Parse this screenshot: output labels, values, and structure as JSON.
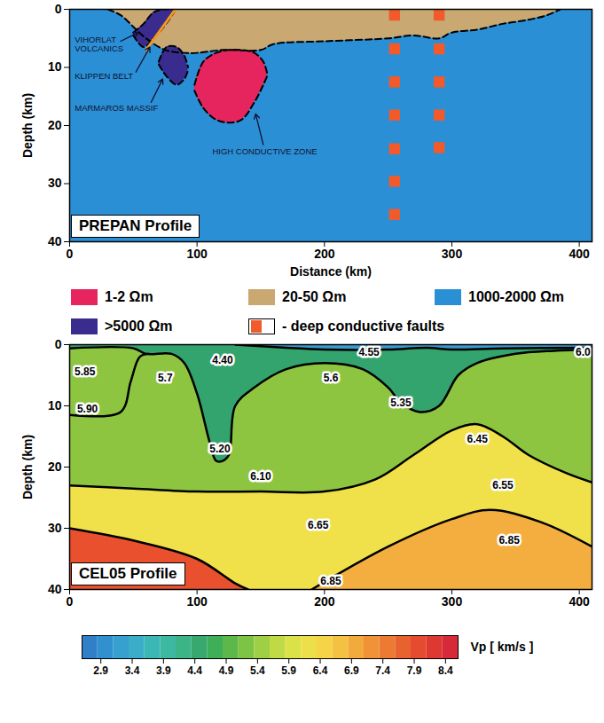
{
  "chart_data": [
    {
      "type": "cross_section",
      "title": "PREPAN Profile",
      "xlabel": "Distance (km)",
      "ylabel": "Depth (km)",
      "xlim": [
        0,
        410
      ],
      "ylim": [
        0,
        40
      ],
      "xticks": [
        0,
        100,
        200,
        300,
        400
      ],
      "yticks": [
        0,
        10,
        20,
        30,
        40
      ],
      "line_style": "dashed",
      "legend": "bottom",
      "legend_items": [
        {
          "label": "1-2 Ωm",
          "color": "#e6245e"
        },
        {
          "label": "20-50 Ωm",
          "color": "#c9a872"
        },
        {
          "label": "1000-2000 Ωm",
          "color": "#2b8fd6"
        },
        {
          "label": ">5000 Ωm",
          "color": "#3a2c8e"
        },
        {
          "label": "- deep conductive faults",
          "color": "#f15a2b",
          "marker": "square"
        }
      ],
      "layers": [
        {
          "class": "1000-2000 Ωm",
          "x": [
            0,
            410
          ],
          "top": [
            0,
            0
          ],
          "bottom": [
            40,
            40
          ]
        },
        {
          "class": "20-50 Ωm",
          "x": [
            30,
            40,
            50,
            60,
            75,
            90,
            100,
            120,
            150,
            160,
            200,
            250,
            270,
            290,
            300,
            320,
            340,
            360,
            375,
            385
          ],
          "top": [
            0,
            0,
            0,
            0,
            0,
            0,
            0,
            0,
            0,
            0,
            0,
            0,
            0,
            0,
            0,
            0,
            0,
            0,
            0,
            0
          ],
          "bottom": [
            0,
            1,
            3,
            5,
            7,
            7.5,
            7.5,
            7,
            7,
            6,
            5.5,
            5,
            4.5,
            5,
            4,
            3.5,
            2.5,
            1.8,
            1,
            0
          ]
        },
        {
          "class": ">5000 Ωm",
          "x": [
            50,
            58,
            66,
            74,
            82
          ],
          "top": [
            4,
            2.5,
            0.5,
            0,
            0
          ],
          "bottom": [
            4.5,
            6.5,
            5,
            3,
            0.5
          ]
        },
        {
          "class": ">5000 Ωm",
          "x": [
            70,
            76,
            84,
            90,
            93
          ],
          "top": [
            9,
            6.5,
            6.5,
            8,
            10
          ],
          "bottom": [
            9.5,
            11.5,
            13,
            12,
            10.5
          ]
        },
        {
          "class": "1-2 Ωm",
          "x": [
            98,
            105,
            115,
            125,
            135,
            145,
            152,
            155
          ],
          "top": [
            13,
            9,
            7.5,
            7,
            7,
            7.5,
            9,
            11
          ],
          "bottom": [
            14,
            17,
            19,
            19.5,
            19,
            16,
            13,
            11.5
          ]
        }
      ],
      "lines": [
        {
          "x": [
            60,
            83
          ],
          "depth": [
            7,
            0
          ],
          "color": "#f5961e"
        }
      ],
      "faults": [
        {
          "x": 255,
          "depth": [
            1,
            6.8,
            12.5,
            18.2,
            24,
            29.6,
            35.3
          ]
        },
        {
          "x": 290,
          "depth": [
            1,
            6.8,
            12.5,
            18.2,
            23.8
          ]
        }
      ],
      "annotations": [
        {
          "text": "VIHORLAT\nVOLCANICS",
          "x": 4,
          "y": 6,
          "arrow_from": [
            40,
            5.5
          ],
          "arrow_to": [
            54,
            4
          ]
        },
        {
          "text": "KLIPPEN BELT",
          "x": 4,
          "y": 11.5,
          "arrow_from": [
            52,
            10.8
          ],
          "arrow_to": [
            63,
            6.5
          ]
        },
        {
          "text": "MARMAROS MASSIF",
          "x": 4,
          "y": 17,
          "arrow_from": [
            64,
            16
          ],
          "arrow_to": [
            73,
            12
          ]
        },
        {
          "text": "HIGH CONDUCTIVE ZONE",
          "x": 112,
          "y": 24.5,
          "arrow_from": [
            152,
            23.3
          ],
          "arrow_to": [
            146,
            18
          ]
        }
      ]
    },
    {
      "type": "cross_section",
      "title": "CEL05 Profile",
      "ylabel": "Depth (km)",
      "xlim": [
        0,
        410
      ],
      "ylim": [
        0,
        40
      ],
      "xticks": [
        0,
        100,
        200,
        300,
        400
      ],
      "yticks": [
        0,
        10,
        20,
        30,
        40
      ],
      "line_style": "solid",
      "layers": [
        {
          "color": "#8dc540",
          "x": [
            0,
            410
          ],
          "top": [
            0,
            0
          ],
          "bottom": [
            40,
            40
          ]
        },
        {
          "color": "#f0e14a",
          "x": [
            0,
            50,
            100,
            150,
            200,
            240,
            270,
            300,
            320,
            340,
            360,
            390,
            410
          ],
          "top": [
            23,
            23.5,
            24,
            24,
            24,
            22,
            18,
            14,
            13,
            15,
            18,
            21,
            22.5
          ],
          "bottom": [
            40,
            40,
            40,
            40,
            40,
            40,
            40,
            40,
            40,
            40,
            40,
            40,
            40
          ]
        },
        {
          "color": "#f4ae40",
          "x": [
            190,
            250,
            300,
            330,
            370,
            410
          ],
          "top": [
            40,
            33,
            28.5,
            27,
            29,
            33
          ],
          "bottom": [
            40,
            40,
            40,
            40,
            40,
            40
          ]
        },
        {
          "color": "#e8502e",
          "x": [
            0,
            50,
            100,
            130,
            140
          ],
          "top": [
            30,
            32,
            35,
            39,
            40
          ],
          "bottom": [
            40,
            40,
            40,
            40,
            40
          ]
        },
        {
          "color": "#33a46e",
          "x": [
            0,
            50,
            60,
            80,
            90,
            100,
            110,
            115,
            120,
            125,
            130,
            145,
            170,
            200,
            230,
            250,
            260,
            275,
            290,
            305,
            320,
            350,
            380,
            410
          ],
          "top": [
            0,
            0,
            0,
            0,
            0,
            0,
            0,
            0,
            0,
            0,
            0,
            0,
            0,
            0,
            0,
            0,
            0,
            0,
            0,
            0,
            0,
            0,
            0,
            0
          ],
          "bottom": [
            0.6,
            0.6,
            1.5,
            1.5,
            3,
            8,
            16,
            19,
            19,
            18,
            10,
            7,
            4,
            3,
            4,
            7,
            9.5,
            11,
            10,
            5,
            3,
            1.5,
            1,
            0.8
          ]
        },
        {
          "color": "#3a9bd0",
          "x": [
            130,
            170,
            200,
            250,
            280,
            300,
            340,
            410
          ],
          "top": [
            0,
            0,
            0,
            0,
            0,
            0,
            0,
            0
          ],
          "bottom": [
            0,
            0.5,
            0.8,
            0.8,
            0.5,
            0.8,
            0.6,
            0.5
          ]
        }
      ],
      "boundaries": [
        {
          "x": [
            0,
            40,
            48,
            55,
            62
          ],
          "depth": [
            11.5,
            11,
            6,
            2,
            1.5
          ]
        }
      ],
      "labels": [
        {
          "text": "5.85",
          "x": 12,
          "y": 4.5
        },
        {
          "text": "5.90",
          "x": 14,
          "y": 10.5
        },
        {
          "text": "5.7",
          "x": 75,
          "y": 5.5
        },
        {
          "text": "4.40",
          "x": 120,
          "y": 2.5
        },
        {
          "text": "4.55",
          "x": 235,
          "y": 1.2
        },
        {
          "text": "5.6",
          "x": 205,
          "y": 5.5
        },
        {
          "text": "5.35",
          "x": 260,
          "y": 9.5
        },
        {
          "text": "5.20",
          "x": 118,
          "y": 17
        },
        {
          "text": "6.10",
          "x": 150,
          "y": 21.5
        },
        {
          "text": "6.45",
          "x": 320,
          "y": 15.5
        },
        {
          "text": "6.55",
          "x": 340,
          "y": 23
        },
        {
          "text": "6.65",
          "x": 195,
          "y": 29.5
        },
        {
          "text": "6.85",
          "x": 345,
          "y": 32
        },
        {
          "text": "6.85",
          "x": 205,
          "y": 38.6
        },
        {
          "text": "6.0",
          "x": 403,
          "y": 1.2
        }
      ],
      "colorbar": {
        "label": "Vp [ km/s ]",
        "range": [
          2.6,
          8.6
        ],
        "ticks": [
          2.9,
          3.4,
          3.9,
          4.4,
          4.9,
          5.4,
          5.9,
          6.4,
          6.9,
          7.4,
          7.9,
          8.4
        ],
        "colors": [
          "#2f7fc9",
          "#3190cf",
          "#36a0cf",
          "#3aaec8",
          "#3bb7b6",
          "#3cb9a0",
          "#3bb488",
          "#37a96f",
          "#3fae58",
          "#5cb84a",
          "#7ec444",
          "#9fcf45",
          "#c0da46",
          "#dbe248",
          "#eddf4a",
          "#f5d448",
          "#f5c143",
          "#f3aa3d",
          "#f09237",
          "#ec7a33",
          "#e8622f",
          "#e44b2f",
          "#de3833",
          "#d62a3b"
        ]
      }
    }
  ]
}
